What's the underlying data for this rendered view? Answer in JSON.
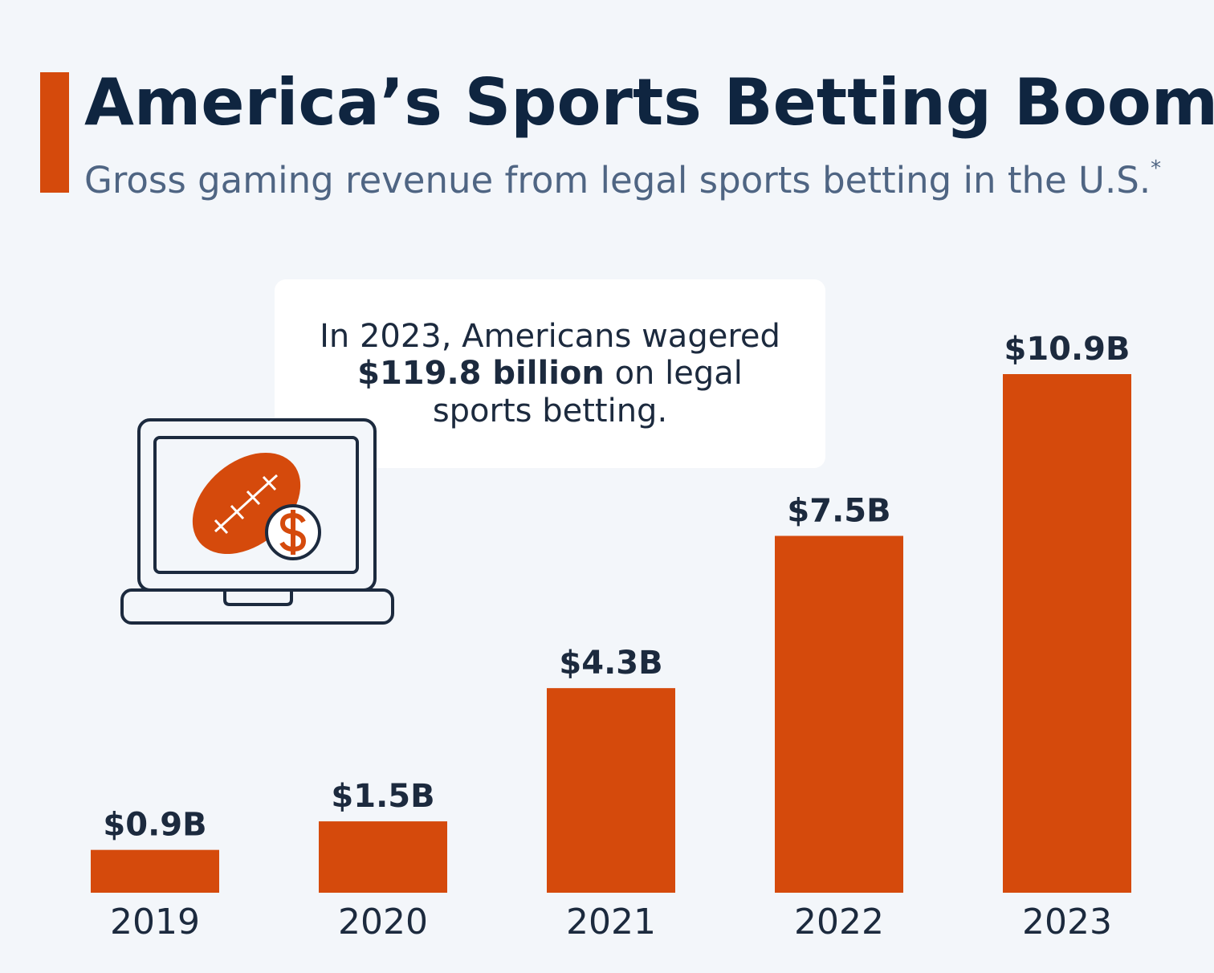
{
  "chart_data": {
    "type": "bar",
    "title": "America’s Sports Betting Boom",
    "subtitle": "Gross gaming revenue from legal sports betting in the U.S.",
    "footnote_marker": "*",
    "categories": [
      "2019",
      "2020",
      "2021",
      "2022",
      "2023"
    ],
    "values": [
      0.9,
      1.5,
      4.3,
      7.5,
      10.9
    ],
    "value_labels": [
      "$0.9B",
      "$1.5B",
      "$4.3B",
      "$7.5B",
      "$10.9B"
    ],
    "color": "#d54a0c",
    "annotation": {
      "line1": "In 2023, Americans wagered",
      "bold": "$119.8 billion",
      "line2_rest": "on legal",
      "line3": "sports betting."
    }
  }
}
